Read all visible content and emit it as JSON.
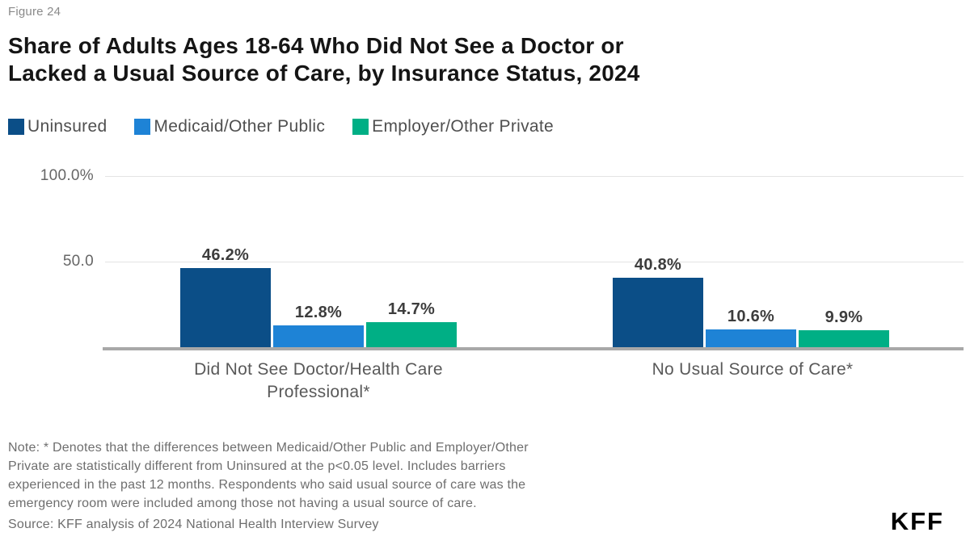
{
  "figure_label": "Figure 24",
  "title": {
    "line1": "Share of Adults Ages 18-64 Who Did Not See a Doctor or",
    "line2": "Lacked a Usual Source of Care, by Insurance Status, 2024"
  },
  "legend": {
    "position": "top",
    "items": [
      {
        "label": "Uninsured",
        "color": "#0B4E87"
      },
      {
        "label": "Medicaid/Other Public",
        "color": "#1E83D6"
      },
      {
        "label": "Employer/Other Private",
        "color": "#00AF85"
      }
    ]
  },
  "y_axis": {
    "max": 100,
    "ticks": [
      {
        "label": "100.0%",
        "value": 100
      },
      {
        "label": "50.0",
        "value": 50
      }
    ]
  },
  "chart_data": {
    "type": "bar",
    "title": "Share of Adults Ages 18-64 Who Did Not See a Doctor or Lacked a Usual Source of Care, by Insurance Status, 2024",
    "categories": [
      "Did Not See Doctor/Health Care Professional*",
      "No Usual Source of Care*"
    ],
    "category_display": [
      [
        "Did Not See Doctor/Health Care",
        "Professional*"
      ],
      [
        "No Usual Source of Care*"
      ]
    ],
    "series": [
      {
        "name": "Uninsured",
        "color": "#0B4E87",
        "values": [
          46.2,
          40.8
        ],
        "labels": [
          "46.2%",
          "40.8%"
        ]
      },
      {
        "name": "Medicaid/Other Public",
        "color": "#1E83D6",
        "values": [
          12.8,
          10.6
        ],
        "labels": [
          "12.8%",
          "10.6%"
        ]
      },
      {
        "name": "Employer/Other Private",
        "color": "#00AF85",
        "values": [
          14.7,
          9.9
        ],
        "labels": [
          "14.7%",
          "9.9%"
        ]
      }
    ],
    "ylim": [
      0,
      100
    ],
    "grid": "horizontal",
    "legend_position": "top"
  },
  "note_lines": [
    "Note: * Denotes that the differences between Medicaid/Other Public and Employer/Other",
    "Private are statistically different from Uninsured at the p<0.05 level. Includes barriers",
    "experienced in the past 12 months. Respondents who said usual source of care was the",
    "emergency room were included among those not having a usual source of care."
  ],
  "source": "Source: KFF analysis of 2024 National Health Interview Survey",
  "logo": "KFF"
}
